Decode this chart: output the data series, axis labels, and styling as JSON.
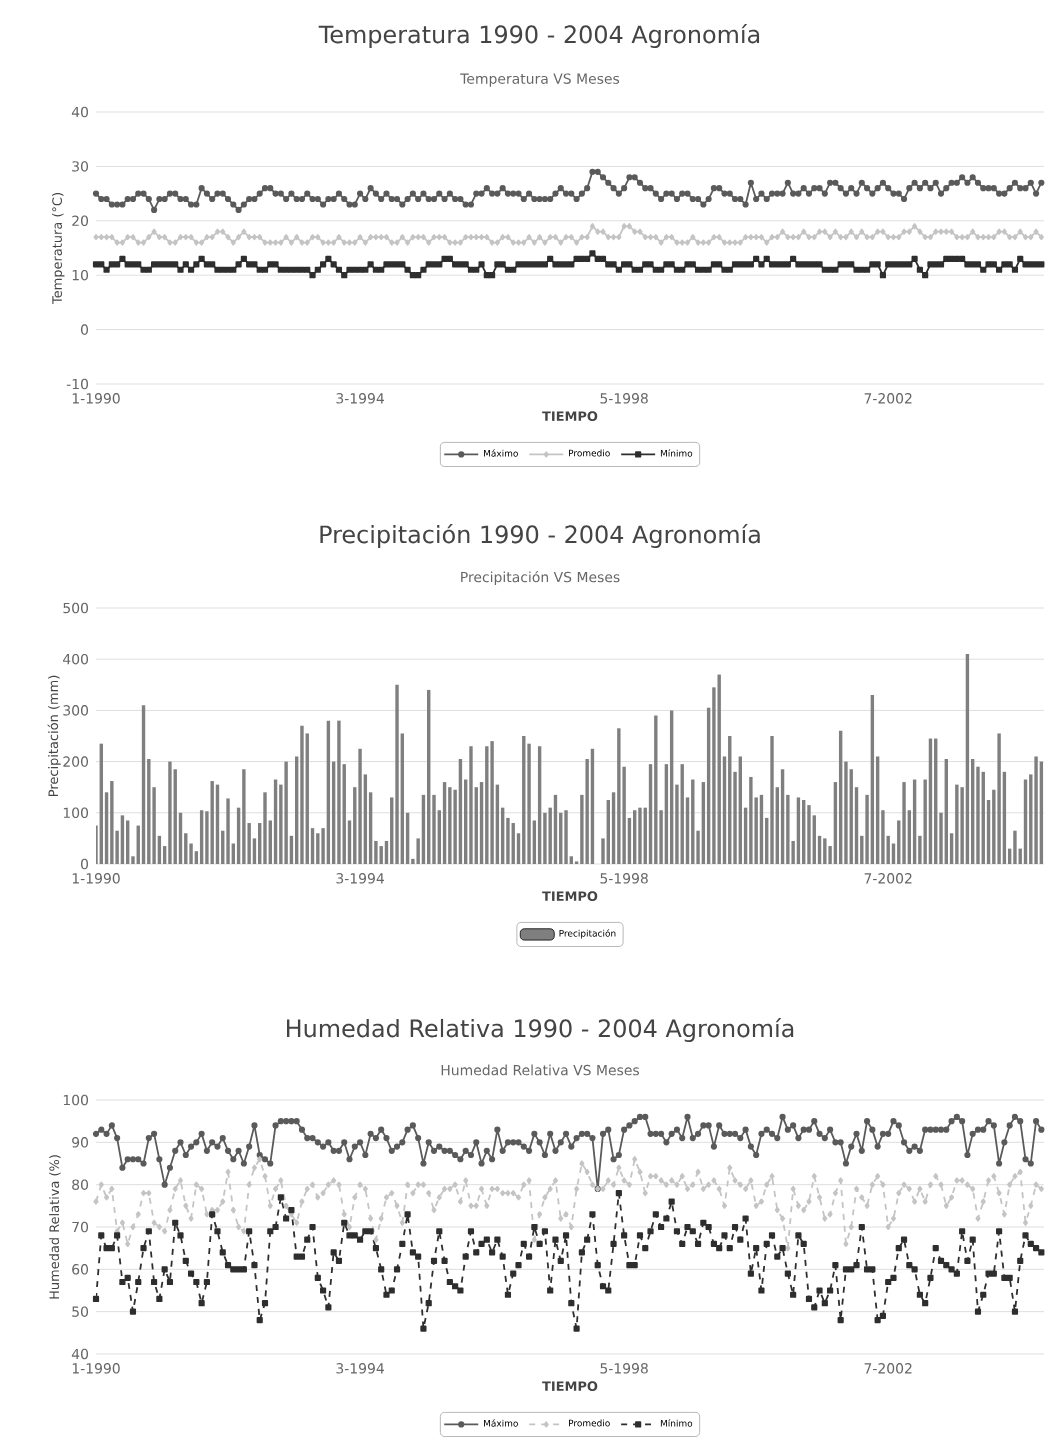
{
  "chart_data": [
    {
      "type": "line",
      "title": "Temperatura 1990 - 2004 Agronomía",
      "subtitle": "Temperatura VS Meses",
      "xlabel": "TIEMPO",
      "ylabel": "Temperatura (°C)",
      "categories": [
        "1-1990",
        null,
        null,
        null,
        null,
        null,
        null,
        null,
        null,
        null,
        null,
        null,
        null,
        null,
        null,
        null,
        null,
        null,
        null,
        null,
        null,
        null,
        null,
        null,
        null,
        null,
        null,
        null,
        null,
        null,
        null,
        null,
        null,
        null,
        null,
        null,
        null,
        null,
        null,
        null,
        null,
        null,
        null,
        null,
        null,
        null,
        null,
        null,
        null,
        null,
        "3-1994",
        null,
        null,
        null,
        null,
        null,
        null,
        null,
        null,
        null,
        null,
        null,
        null,
        null,
        null,
        null,
        null,
        null,
        null,
        null,
        null,
        null,
        null,
        null,
        null,
        null,
        null,
        null,
        null,
        null,
        null,
        null,
        null,
        null,
        null,
        null,
        null,
        null,
        null,
        null,
        null,
        null,
        null,
        null,
        null,
        null,
        null,
        null,
        null,
        null,
        "5-1998",
        null,
        null,
        null,
        null,
        null,
        null,
        null,
        null,
        null,
        null,
        null,
        null,
        null,
        null,
        null,
        null,
        null,
        null,
        null,
        null,
        null,
        null,
        null,
        null,
        null,
        null,
        null,
        null,
        null,
        null,
        null,
        null,
        null,
        null,
        null,
        null,
        null,
        null,
        null,
        null,
        null,
        null,
        null,
        null,
        null,
        null,
        null,
        null,
        null,
        "7-2002",
        null,
        null,
        null,
        null,
        null,
        null,
        null,
        null,
        null,
        null,
        null,
        null,
        null,
        null,
        null,
        null,
        null,
        null,
        null,
        null,
        null,
        null,
        null,
        null,
        null,
        null,
        null,
        null,
        null
      ],
      "series": [
        {
          "name": "Máximo",
          "color": "#5a5a5a",
          "marker": "circle",
          "values": [
            25,
            24,
            24,
            23,
            23,
            23,
            24,
            24,
            25,
            25,
            24,
            22,
            24,
            24,
            25,
            25,
            24,
            24,
            23,
            23,
            26,
            25,
            24,
            25,
            25,
            24,
            23,
            22,
            23,
            24,
            24,
            25,
            26,
            26,
            25,
            25,
            24,
            25,
            24,
            24,
            25,
            24,
            24,
            23,
            24,
            24,
            25,
            24,
            23,
            23,
            25,
            24,
            26,
            25,
            24,
            25,
            24,
            24,
            23,
            24,
            25,
            24,
            25,
            24,
            24,
            25,
            24,
            25,
            24,
            24,
            23,
            23,
            25,
            25,
            26,
            25,
            25,
            26,
            25,
            25,
            25,
            24,
            25,
            24,
            24,
            24,
            24,
            25,
            26,
            25,
            25,
            24,
            25,
            26,
            29,
            29,
            28,
            27,
            26,
            25,
            26,
            28,
            28,
            27,
            26,
            26,
            25,
            24,
            25,
            25,
            24,
            25,
            25,
            24,
            24,
            23,
            24,
            26,
            26,
            25,
            25,
            24,
            24,
            23,
            27,
            24,
            25,
            24,
            25,
            25,
            25,
            27,
            25,
            25,
            26,
            25,
            26,
            26,
            25,
            27,
            27,
            26,
            25,
            26,
            25,
            27,
            26,
            25,
            26,
            27,
            26,
            25,
            25,
            24,
            26,
            27,
            26,
            27,
            26,
            27,
            25,
            26,
            27,
            27,
            28,
            27,
            28,
            27,
            26,
            26,
            26,
            25,
            25,
            26,
            27,
            26,
            26,
            27,
            25,
            27
          ]
        },
        {
          "name": "Promedio",
          "color": "#c4c4c4",
          "marker": "diamond",
          "values": [
            17,
            17,
            17,
            17,
            16,
            16,
            17,
            17,
            16,
            16,
            17,
            18,
            17,
            17,
            16,
            16,
            17,
            17,
            17,
            16,
            16,
            17,
            17,
            18,
            18,
            17,
            16,
            17,
            18,
            17,
            17,
            17,
            16,
            16,
            16,
            16,
            17,
            16,
            17,
            16,
            16,
            17,
            17,
            16,
            16,
            16,
            17,
            16,
            16,
            16,
            17,
            16,
            17,
            17,
            17,
            17,
            16,
            16,
            17,
            16,
            17,
            17,
            17,
            16,
            17,
            17,
            17,
            16,
            16,
            16,
            17,
            17,
            17,
            17,
            17,
            16,
            16,
            17,
            17,
            16,
            16,
            16,
            17,
            16,
            17,
            16,
            17,
            17,
            16,
            17,
            17,
            16,
            17,
            17,
            19,
            18,
            18,
            17,
            17,
            17,
            19,
            19,
            18,
            18,
            17,
            17,
            17,
            16,
            17,
            17,
            16,
            16,
            16,
            17,
            16,
            16,
            16,
            17,
            17,
            16,
            16,
            16,
            16,
            17,
            17,
            17,
            17,
            16,
            17,
            17,
            18,
            17,
            17,
            17,
            18,
            17,
            17,
            18,
            18,
            17,
            18,
            17,
            17,
            18,
            17,
            18,
            17,
            17,
            18,
            18,
            17,
            17,
            17,
            18,
            18,
            19,
            18,
            17,
            17,
            18,
            18,
            18,
            18,
            17,
            17,
            17,
            18,
            17,
            17,
            17,
            17,
            18,
            18,
            17,
            17,
            18,
            17,
            17,
            18,
            17
          ]
        },
        {
          "name": "Mínimo",
          "color": "#2e2e2e",
          "marker": "square",
          "values": [
            12,
            12,
            11,
            12,
            12,
            13,
            12,
            12,
            12,
            11,
            11,
            12,
            12,
            12,
            12,
            12,
            11,
            12,
            11,
            12,
            13,
            12,
            12,
            11,
            11,
            11,
            11,
            12,
            13,
            12,
            12,
            11,
            11,
            12,
            12,
            11,
            11,
            11,
            11,
            11,
            11,
            10,
            11,
            12,
            13,
            12,
            11,
            10,
            11,
            11,
            11,
            11,
            12,
            11,
            11,
            12,
            12,
            12,
            12,
            11,
            10,
            10,
            11,
            12,
            12,
            12,
            13,
            13,
            12,
            12,
            12,
            11,
            11,
            12,
            10,
            10,
            12,
            12,
            11,
            11,
            12,
            12,
            12,
            12,
            12,
            12,
            13,
            12,
            12,
            12,
            12,
            13,
            13,
            13,
            14,
            13,
            13,
            12,
            12,
            11,
            12,
            12,
            11,
            11,
            12,
            12,
            11,
            11,
            12,
            12,
            11,
            11,
            12,
            12,
            11,
            11,
            11,
            12,
            12,
            11,
            11,
            12,
            12,
            12,
            12,
            13,
            12,
            13,
            12,
            12,
            12,
            12,
            13,
            12,
            12,
            12,
            12,
            12,
            11,
            11,
            11,
            12,
            12,
            12,
            11,
            11,
            11,
            12,
            12,
            10,
            12,
            12,
            12,
            12,
            12,
            13,
            11,
            10,
            12,
            12,
            12,
            13,
            13,
            13,
            13,
            12,
            12,
            12,
            11,
            12,
            12,
            11,
            12,
            12,
            11,
            13,
            12,
            12,
            12,
            12
          ]
        }
      ],
      "ylim": [
        -10,
        40
      ],
      "yticks": [
        -10,
        0,
        10,
        20,
        30,
        40
      ],
      "grid": "y",
      "legend": "bottom"
    },
    {
      "type": "bar",
      "title": "Precipitación 1990 - 2004 Agronomía",
      "subtitle": "Precipitación VS Meses",
      "xlabel": "TIEMPO",
      "ylabel": "Precipitación (mm)",
      "categories": [
        "1-1990",
        null,
        null,
        null,
        null,
        null,
        null,
        null,
        null,
        null,
        null,
        null,
        null,
        null,
        null,
        null,
        null,
        null,
        null,
        null,
        null,
        null,
        null,
        null,
        null,
        null,
        null,
        null,
        null,
        null,
        null,
        null,
        null,
        null,
        null,
        null,
        null,
        null,
        null,
        null,
        null,
        null,
        null,
        null,
        null,
        null,
        null,
        null,
        null,
        null,
        "3-1994",
        null,
        null,
        null,
        null,
        null,
        null,
        null,
        null,
        null,
        null,
        null,
        null,
        null,
        null,
        null,
        null,
        null,
        null,
        null,
        null,
        null,
        null,
        null,
        null,
        null,
        null,
        null,
        null,
        null,
        null,
        null,
        null,
        null,
        null,
        null,
        null,
        null,
        null,
        null,
        null,
        null,
        null,
        null,
        null,
        null,
        null,
        null,
        null,
        null,
        "5-1998",
        null,
        null,
        null,
        null,
        null,
        null,
        null,
        null,
        null,
        null,
        null,
        null,
        null,
        null,
        null,
        null,
        null,
        null,
        null,
        null,
        null,
        null,
        null,
        null,
        null,
        null,
        null,
        null,
        null,
        null,
        null,
        null,
        null,
        null,
        null,
        null,
        null,
        null,
        null,
        null,
        null,
        null,
        null,
        null,
        null,
        null,
        null,
        null,
        null,
        "7-2002",
        null,
        null,
        null,
        null,
        null,
        null,
        null,
        null,
        null,
        null,
        null,
        null,
        null,
        null,
        null,
        null,
        null,
        null,
        null,
        null,
        null,
        null,
        null,
        null,
        null,
        null,
        null,
        null,
        null
      ],
      "series": [
        {
          "name": "Precipitación",
          "color": "#7f7f7f",
          "values": [
            75,
            235,
            140,
            162,
            65,
            95,
            85,
            15,
            75,
            310,
            205,
            150,
            55,
            35,
            200,
            185,
            100,
            60,
            40,
            25,
            105,
            103,
            162,
            155,
            65,
            128,
            40,
            110,
            185,
            80,
            50,
            80,
            140,
            85,
            165,
            155,
            200,
            55,
            210,
            270,
            255,
            70,
            60,
            70,
            280,
            200,
            280,
            195,
            85,
            150,
            225,
            175,
            140,
            45,
            35,
            45,
            130,
            350,
            255,
            100,
            10,
            50,
            135,
            340,
            135,
            105,
            160,
            150,
            145,
            205,
            165,
            230,
            150,
            160,
            230,
            240,
            155,
            110,
            90,
            80,
            60,
            250,
            235,
            85,
            230,
            100,
            110,
            135,
            100,
            105,
            15,
            5,
            135,
            205,
            225,
            0,
            50,
            125,
            140,
            265,
            190,
            90,
            105,
            110,
            110,
            195,
            290,
            105,
            195,
            300,
            155,
            195,
            130,
            165,
            65,
            160,
            305,
            345,
            370,
            210,
            250,
            180,
            210,
            110,
            170,
            130,
            135,
            90,
            250,
            150,
            185,
            135,
            45,
            130,
            125,
            115,
            95,
            55,
            50,
            35,
            160,
            260,
            200,
            185,
            150,
            55,
            135,
            330,
            210,
            105,
            55,
            40,
            85,
            160,
            105,
            165,
            55,
            165,
            245,
            245,
            100,
            205,
            60,
            155,
            150,
            410,
            205,
            190,
            180,
            125,
            145,
            255,
            180,
            30,
            65,
            30,
            165,
            175,
            210,
            200
          ]
        }
      ],
      "ylim": [
        0,
        500
      ],
      "yticks": [
        0,
        100,
        200,
        300,
        400,
        500
      ],
      "grid": "y",
      "legend": "bottom"
    },
    {
      "type": "line",
      "title": "Humedad Relativa 1990 - 2004 Agronomía",
      "subtitle": "Humedad Relativa VS Meses",
      "xlabel": "TIEMPO",
      "ylabel": "Humedad Relativa (%)",
      "categories": [
        "1-1990",
        null,
        null,
        null,
        null,
        null,
        null,
        null,
        null,
        null,
        null,
        null,
        null,
        null,
        null,
        null,
        null,
        null,
        null,
        null,
        null,
        null,
        null,
        null,
        null,
        null,
        null,
        null,
        null,
        null,
        null,
        null,
        null,
        null,
        null,
        null,
        null,
        null,
        null,
        null,
        null,
        null,
        null,
        null,
        null,
        null,
        null,
        null,
        null,
        null,
        "3-1994",
        null,
        null,
        null,
        null,
        null,
        null,
        null,
        null,
        null,
        null,
        null,
        null,
        null,
        null,
        null,
        null,
        null,
        null,
        null,
        null,
        null,
        null,
        null,
        null,
        null,
        null,
        null,
        null,
        null,
        null,
        null,
        null,
        null,
        null,
        null,
        null,
        null,
        null,
        null,
        null,
        null,
        null,
        null,
        null,
        null,
        null,
        null,
        null,
        null,
        "5-1998",
        null,
        null,
        null,
        null,
        null,
        null,
        null,
        null,
        null,
        null,
        null,
        null,
        null,
        null,
        null,
        null,
        null,
        null,
        null,
        null,
        null,
        null,
        null,
        null,
        null,
        null,
        null,
        null,
        null,
        null,
        null,
        null,
        null,
        null,
        null,
        null,
        null,
        null,
        null,
        null,
        null,
        null,
        null,
        null,
        null,
        null,
        null,
        null,
        null,
        "7-2002",
        null,
        null,
        null,
        null,
        null,
        null,
        null,
        null,
        null,
        null,
        null,
        null,
        null,
        null,
        null,
        null,
        null,
        null,
        null,
        null,
        null,
        null,
        null,
        null,
        null,
        null,
        null,
        null,
        null
      ],
      "series": [
        {
          "name": "Máximo",
          "color": "#5a5a5a",
          "marker": "circle",
          "values": [
            92,
            93,
            92,
            94,
            91,
            84,
            86,
            86,
            86,
            85,
            91,
            92,
            86,
            80,
            84,
            88,
            90,
            87,
            89,
            90,
            92,
            88,
            90,
            89,
            91,
            88,
            86,
            88,
            85,
            89,
            94,
            87,
            86,
            85,
            94,
            95,
            95,
            95,
            95,
            93,
            91,
            91,
            90,
            89,
            90,
            88,
            88,
            90,
            86,
            89,
            90,
            87,
            92,
            91,
            93,
            91,
            88,
            89,
            90,
            93,
            94,
            91,
            85,
            90,
            88,
            89,
            88,
            88,
            87,
            86,
            88,
            87,
            90,
            85,
            88,
            86,
            93,
            88,
            90,
            90,
            90,
            89,
            88,
            92,
            90,
            87,
            92,
            88,
            90,
            92,
            89,
            91,
            92,
            92,
            91,
            79,
            92,
            93,
            86,
            87,
            93,
            94,
            95,
            96,
            96,
            92,
            92,
            92,
            90,
            92,
            93,
            91,
            96,
            91,
            92,
            94,
            94,
            89,
            94,
            92,
            92,
            92,
            91,
            93,
            89,
            87,
            92,
            93,
            92,
            91,
            96,
            93,
            94,
            91,
            93,
            93,
            95,
            92,
            91,
            93,
            90,
            90,
            85,
            89,
            92,
            88,
            95,
            93,
            89,
            92,
            92,
            95,
            94,
            90,
            88,
            89,
            88,
            93,
            93,
            93,
            93,
            93,
            95,
            96,
            95,
            87,
            92,
            93,
            93,
            95,
            94,
            85,
            90,
            94,
            96,
            95,
            86,
            85,
            95,
            93
          ]
        },
        {
          "name": "Promedio",
          "color": "#c4c4c4",
          "marker": "diamond",
          "line_style": "dashed",
          "values": [
            76,
            80,
            77,
            79,
            69,
            71,
            66,
            70,
            73,
            78,
            78,
            71,
            70,
            69,
            74,
            79,
            81,
            75,
            72,
            80,
            79,
            73,
            74,
            74,
            76,
            83,
            74,
            70,
            69,
            80,
            84,
            86,
            82,
            75,
            79,
            81,
            75,
            73,
            71,
            76,
            79,
            80,
            77,
            78,
            80,
            81,
            80,
            73,
            70,
            77,
            80,
            79,
            72,
            67,
            72,
            77,
            78,
            75,
            71,
            80,
            78,
            80,
            80,
            78,
            74,
            77,
            79,
            79,
            80,
            76,
            81,
            75,
            75,
            79,
            75,
            79,
            79,
            78,
            78,
            78,
            77,
            80,
            81,
            67,
            73,
            77,
            79,
            81,
            72,
            73,
            70,
            79,
            85,
            83,
            80,
            79,
            79,
            81,
            80,
            84,
            81,
            80,
            86,
            83,
            78,
            82,
            82,
            81,
            80,
            81,
            80,
            82,
            79,
            80,
            83,
            79,
            80,
            81,
            79,
            75,
            84,
            81,
            80,
            79,
            81,
            75,
            76,
            80,
            82,
            74,
            72,
            65,
            79,
            75,
            74,
            76,
            82,
            77,
            72,
            73,
            78,
            81,
            66,
            70,
            79,
            77,
            75,
            80,
            82,
            80,
            70,
            72,
            78,
            80,
            79,
            76,
            79,
            76,
            80,
            82,
            80,
            75,
            77,
            81,
            81,
            80,
            79,
            72,
            76,
            81,
            82,
            78,
            73,
            80,
            82,
            83,
            71,
            75,
            80,
            79
          ]
        },
        {
          "name": "Mínimo",
          "color": "#2e2e2e",
          "marker": "square",
          "line_style": "dashed",
          "values": [
            53,
            68,
            65,
            65,
            68,
            57,
            58,
            50,
            57,
            65,
            69,
            57,
            53,
            60,
            57,
            71,
            68,
            62,
            59,
            57,
            52,
            57,
            73,
            69,
            64,
            61,
            60,
            60,
            60,
            69,
            61,
            48,
            52,
            69,
            70,
            77,
            72,
            74,
            63,
            63,
            67,
            70,
            58,
            55,
            51,
            64,
            62,
            71,
            68,
            68,
            67,
            69,
            69,
            65,
            60,
            54,
            55,
            60,
            66,
            73,
            64,
            63,
            46,
            52,
            62,
            69,
            62,
            57,
            56,
            55,
            63,
            69,
            64,
            66,
            67,
            64,
            67,
            63,
            54,
            59,
            61,
            66,
            63,
            70,
            66,
            69,
            55,
            67,
            62,
            68,
            52,
            46,
            64,
            67,
            73,
            61,
            56,
            55,
            66,
            78,
            68,
            61,
            61,
            68,
            65,
            69,
            73,
            70,
            72,
            76,
            69,
            66,
            70,
            69,
            66,
            71,
            70,
            66,
            65,
            68,
            65,
            70,
            67,
            72,
            59,
            65,
            55,
            66,
            68,
            63,
            65,
            59,
            54,
            68,
            66,
            53,
            51,
            55,
            52,
            55,
            61,
            48,
            60,
            60,
            61,
            70,
            60,
            60,
            48,
            49,
            57,
            58,
            65,
            67,
            61,
            60,
            54,
            52,
            58,
            65,
            62,
            61,
            60,
            59,
            69,
            62,
            67,
            50,
            54,
            59,
            59,
            69,
            58,
            58,
            50,
            62,
            68,
            66,
            65,
            64
          ]
        }
      ],
      "ylim": [
        40,
        100
      ],
      "yticks": [
        40,
        50,
        60,
        70,
        80,
        90,
        100
      ],
      "grid": "y",
      "legend": "bottom"
    }
  ]
}
